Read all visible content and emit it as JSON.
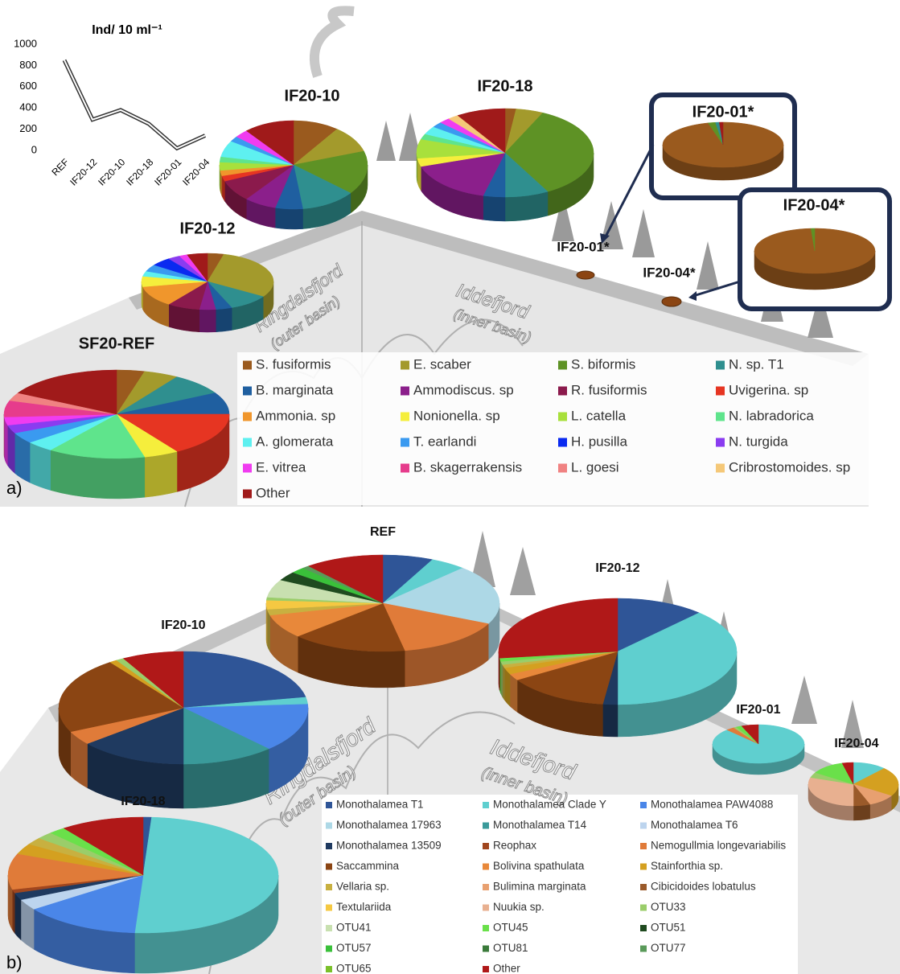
{
  "chart_data": [
    {
      "type": "line",
      "title": "Ind/ 10 ml⁻¹",
      "categories": [
        "REF",
        "IF20-12",
        "IF20-10",
        "IF20-18",
        "IF20-01",
        "IF20-04"
      ],
      "values": [
        850,
        290,
        380,
        250,
        20,
        140
      ],
      "color": "#333333",
      "ylim": [
        0,
        1000
      ],
      "yticks": [
        0,
        200,
        400,
        600,
        800,
        1000
      ]
    },
    {
      "type": "pie",
      "panel_label": "a)",
      "categories": [
        "S. fusiformis",
        "E. scaber",
        "S. biformis",
        "N. sp. T1",
        "B. marginata",
        "Ammodiscus. sp",
        "R. fusiformis",
        "Uvigerina. sp",
        "Ammonia. sp",
        "Nonionella. sp",
        "L. catella",
        "N. labradorica",
        "A. glomerata",
        "T. earlandi",
        "H. pusilla",
        "N. turgida",
        "E. vitrea",
        "B. skagerrakensis",
        "L. goesi",
        "Cribrostomoides. sp",
        "Other"
      ],
      "colors": [
        "#9a5a1e",
        "#a39a2c",
        "#5e9225",
        "#2f8f8f",
        "#1f5fa0",
        "#8b1f8b",
        "#8b1a4c",
        "#e63522",
        "#f0962c",
        "#f5ee3c",
        "#a8e03c",
        "#5fe48c",
        "#5ef0f0",
        "#3a9af0",
        "#0a2af0",
        "#8a3cf0",
        "#f03cf0",
        "#e63c8c",
        "#f08282",
        "#f5c878",
        "#a01a1a"
      ],
      "pies": [
        {
          "name": "SF20-REF",
          "values": [
            4,
            5,
            0,
            8,
            8,
            0,
            0,
            16,
            0,
            5,
            0,
            14,
            4,
            4,
            0,
            3,
            3,
            6,
            3,
            0,
            17
          ]
        },
        {
          "name": "IF20-12",
          "values": [
            4,
            30,
            0,
            10,
            4,
            4,
            8,
            0,
            12,
            6,
            0,
            0,
            3,
            4,
            5,
            3,
            2,
            0,
            0,
            0,
            5
          ]
        },
        {
          "name": "IF20-10",
          "values": [
            10,
            10,
            16,
            12,
            6,
            7,
            8,
            2,
            2,
            0,
            3,
            2,
            6,
            2,
            0,
            0,
            3,
            0,
            0,
            0,
            11
          ]
        },
        {
          "name": "IF20-18",
          "values": [
            2,
            5,
            35,
            8,
            4,
            16,
            0,
            0,
            0,
            3,
            7,
            2,
            3,
            2,
            0,
            0,
            2,
            0,
            0,
            2,
            9
          ]
        },
        {
          "name": "IF20-01*",
          "values": [
            96,
            0,
            2,
            1,
            0,
            0,
            0,
            0,
            0,
            0,
            0,
            0,
            0,
            0,
            0,
            0,
            0,
            0,
            0,
            0,
            1
          ]
        },
        {
          "name": "IF20-04*",
          "values": [
            99,
            0,
            1,
            0,
            0,
            0,
            0,
            0,
            0,
            0,
            0,
            0,
            0,
            0,
            0,
            0,
            0,
            0,
            0,
            0,
            0
          ]
        }
      ],
      "annotations": [
        "Ringdalsfjord",
        "(outer basin)",
        "Iddefjord",
        "(inner basin)",
        "IF20-01*",
        "IF20-04*"
      ]
    },
    {
      "type": "pie",
      "panel_label": "b)",
      "categories": [
        "Monothalamea T1",
        "Monothalamea Clade Y",
        "Monothalamea PAW4088",
        "Monothalamea 17963",
        "Monothalamea T14",
        "Monothalamea T6",
        "Monothalamea 13509",
        "Reophax",
        "Nemogullmia longevariabilis",
        "Saccammina",
        "Bolivina spathulata",
        "Stainforthia sp.",
        "Vellaria sp.",
        "Bulimina marginata",
        "Cibicidoides lobatulus",
        "Textulariida",
        "Nuukia sp.",
        "OTU33",
        "OTU41",
        "OTU45",
        "OTU51",
        "OTU57",
        "OTU81",
        "OTU77",
        "OTU65",
        "Other"
      ],
      "colors": [
        "#2f5597",
        "#5fcfcf",
        "#4a86e8",
        "#add8e6",
        "#3a9a9a",
        "#bcd4ee",
        "#1f3a60",
        "#a0461e",
        "#e07b39",
        "#8b4513",
        "#e8883a",
        "#d4a020",
        "#c8b040",
        "#e8a070",
        "#9a5a2a",
        "#f5c842",
        "#e8b090",
        "#9acd6a",
        "#c8e0b0",
        "#6ae04a",
        "#1f4a1f",
        "#3ac03a",
        "#3a7a3a",
        "#5a9a5a",
        "#7ac02a",
        "#b01818"
      ],
      "pies": [
        {
          "name": "REF",
          "values": [
            7,
            5,
            0,
            20,
            0,
            0,
            0,
            0,
            15,
            16,
            8,
            0,
            2,
            0,
            0,
            3,
            0,
            1,
            6,
            0,
            3,
            2,
            0,
            1,
            0,
            11
          ]
        },
        {
          "name": "IF20-12",
          "values": [
            12,
            38,
            0,
            0,
            0,
            0,
            2,
            0,
            0,
            14,
            2,
            2,
            1,
            0,
            0,
            0,
            0,
            1,
            0,
            1,
            0,
            0,
            0,
            0,
            0,
            27
          ]
        },
        {
          "name": "IF20-10",
          "values": [
            22,
            2,
            14,
            0,
            12,
            0,
            14,
            0,
            4,
            22,
            0,
            1,
            0,
            0,
            0,
            0,
            0,
            1,
            0,
            0,
            0,
            0,
            0,
            0,
            0,
            8
          ]
        },
        {
          "name": "IF20-18",
          "values": [
            1,
            50,
            14,
            0,
            0,
            3,
            2,
            1,
            10,
            0,
            0,
            3,
            2,
            0,
            0,
            0,
            0,
            2,
            0,
            2,
            0,
            0,
            0,
            0,
            0,
            10
          ]
        },
        {
          "name": "IF20-01",
          "values": [
            0,
            88,
            0,
            0,
            0,
            0,
            0,
            0,
            3,
            0,
            0,
            0,
            0,
            0,
            0,
            0,
            0,
            1,
            0,
            2,
            0,
            0,
            0,
            0,
            0,
            6
          ]
        },
        {
          "name": "IF20-04",
          "values": [
            0,
            12,
            0,
            0,
            0,
            0,
            0,
            0,
            0,
            0,
            0,
            22,
            0,
            10,
            6,
            0,
            30,
            4,
            0,
            12,
            0,
            0,
            0,
            0,
            0,
            4
          ]
        }
      ],
      "annotations": [
        "Ringdalsfjord",
        "(outer basin)",
        "Iddefjord",
        "(inner basin)"
      ]
    }
  ]
}
